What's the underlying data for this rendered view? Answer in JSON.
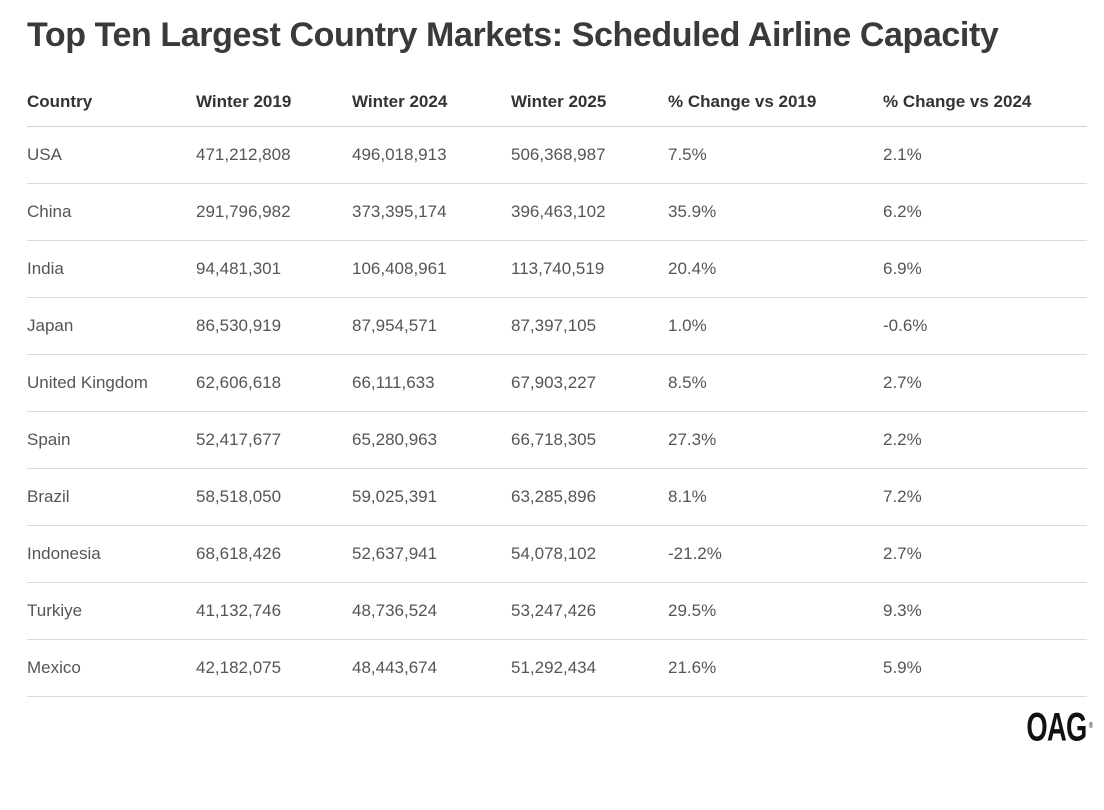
{
  "title": "Top Ten Largest Country Markets: Scheduled Airline Capacity",
  "footer": {
    "logo": "OAG",
    "trademark": "®"
  },
  "colors": {
    "background": "#ffffff",
    "title_text": "#3a3a3a",
    "header_text": "#333333",
    "cell_text": "#555555",
    "divider": "#dcdcdc",
    "logo": "#111111"
  },
  "chart_data": {
    "type": "table",
    "title": "Top Ten Largest Country Markets: Scheduled Airline Capacity",
    "columns": [
      "Country",
      "Winter 2019",
      "Winter 2024",
      "Winter 2025",
      "% Change vs 2019",
      "% Change vs 2024"
    ],
    "rows": [
      [
        "USA",
        "471,212,808",
        "496,018,913",
        "506,368,987",
        "7.5%",
        "2.1%"
      ],
      [
        "China",
        "291,796,982",
        "373,395,174",
        "396,463,102",
        "35.9%",
        "6.2%"
      ],
      [
        "India",
        "94,481,301",
        "106,408,961",
        "113,740,519",
        "20.4%",
        "6.9%"
      ],
      [
        "Japan",
        "86,530,919",
        "87,954,571",
        "87,397,105",
        "1.0%",
        "-0.6%"
      ],
      [
        "United Kingdom",
        "62,606,618",
        "66,111,633",
        "67,903,227",
        "8.5%",
        "2.7%"
      ],
      [
        "Spain",
        "52,417,677",
        "65,280,963",
        "66,718,305",
        "27.3%",
        "2.2%"
      ],
      [
        "Brazil",
        "58,518,050",
        "59,025,391",
        "63,285,896",
        "8.1%",
        "7.2%"
      ],
      [
        "Indonesia",
        "68,618,426",
        "52,637,941",
        "54,078,102",
        "-21.2%",
        "2.7%"
      ],
      [
        "Turkiye",
        "41,132,746",
        "48,736,524",
        "53,247,426",
        "29.5%",
        "9.3%"
      ],
      [
        "Mexico",
        "42,182,075",
        "48,443,674",
        "51,292,434",
        "21.6%",
        "5.9%"
      ]
    ]
  }
}
